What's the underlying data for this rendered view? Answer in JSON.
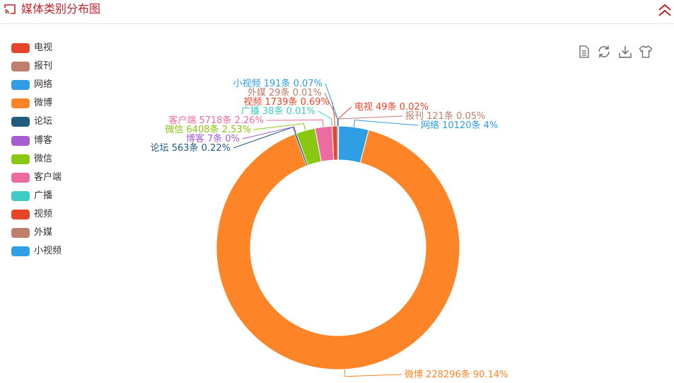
{
  "header": {
    "title": "媒体类别分布图",
    "accent_color": "#c0242b",
    "left_icon": "cast-icon",
    "right_icon": "double-chevron-up-icon"
  },
  "toolbox": {
    "items": [
      {
        "name": "data-view-icon"
      },
      {
        "name": "refresh-icon"
      },
      {
        "name": "download-icon"
      },
      {
        "name": "theme-shirt-icon"
      }
    ]
  },
  "chart_data": {
    "type": "pie",
    "donut": true,
    "legend_position": "left",
    "slices": [
      {
        "name": "电视",
        "count": 49,
        "percent": 0.02,
        "color": "#e7452a",
        "label": "电视 49条  0.02%"
      },
      {
        "name": "报刊",
        "count": 121,
        "percent": 0.05,
        "color": "#c07e6c",
        "label": "报刊 121条  0.05%"
      },
      {
        "name": "网络",
        "count": 10120,
        "percent": 4,
        "color": "#2f9ee5",
        "label": "网络 10120条  4%"
      },
      {
        "name": "微博",
        "count": 228296,
        "percent": 90.14,
        "color": "#fe8527",
        "label": "微博 228296条  90.14%"
      },
      {
        "name": "论坛",
        "count": 563,
        "percent": 0.22,
        "color": "#215c7e",
        "label": "论坛 563条  0.22%"
      },
      {
        "name": "博客",
        "count": 7,
        "percent": 0,
        "color": "#a65ed3",
        "label": "博客 7条  0%"
      },
      {
        "name": "微信",
        "count": 6408,
        "percent": 2.53,
        "color": "#8ac710",
        "label": "微信 6408条  2.53%"
      },
      {
        "name": "客户端",
        "count": 5718,
        "percent": 2.26,
        "color": "#ec6ba0",
        "label": "客户端 5718条  2.26%"
      },
      {
        "name": "广播",
        "count": 38,
        "percent": 0.01,
        "color": "#3fcbc6",
        "label": "广播 38条  0.01%"
      },
      {
        "name": "视频",
        "count": 1739,
        "percent": 0.69,
        "color": "#e7452a",
        "label": "视频 1739条  0.69%"
      },
      {
        "name": "外媒",
        "count": 29,
        "percent": 0.01,
        "color": "#c07e6c",
        "label": "外媒 29条  0.01%"
      },
      {
        "name": "小视频",
        "count": 191,
        "percent": 0.07,
        "color": "#2f9ee5",
        "label": "小视频 191条  0.07%"
      }
    ]
  }
}
